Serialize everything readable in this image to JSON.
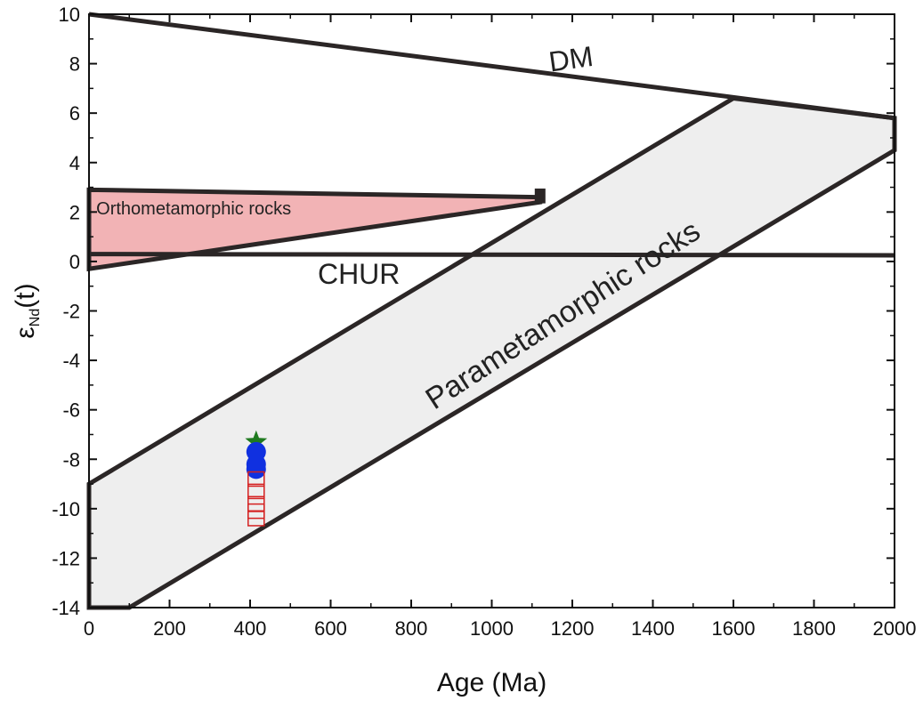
{
  "chart_data": {
    "type": "scatter",
    "xlabel": "Age (Ma)",
    "ylabel_main": "ε",
    "ylabel_sub": "Nd",
    "ylabel_tail": "(t)",
    "xlim": [
      0,
      2000
    ],
    "ylim": [
      -14,
      10
    ],
    "x_ticks": [
      0,
      200,
      400,
      600,
      800,
      1000,
      1200,
      1400,
      1600,
      1800,
      2000
    ],
    "y_ticks": [
      -14,
      -12,
      -10,
      -8,
      -6,
      -4,
      -2,
      0,
      2,
      4,
      6,
      8,
      10
    ],
    "grid": false,
    "lines": [
      {
        "label": "DM",
        "points": [
          [
            0,
            10
          ],
          [
            2000,
            5.8
          ]
        ]
      },
      {
        "label": "CHUR",
        "points": [
          [
            0,
            0.3
          ],
          [
            2000,
            0.25
          ]
        ]
      }
    ],
    "regions": [
      {
        "label": "Parametamorphic rocks",
        "color": "#eeeeee",
        "points": [
          [
            0,
            -9
          ],
          [
            1600,
            6.6
          ],
          [
            2000,
            5.8
          ],
          [
            2000,
            4.5
          ],
          [
            100,
            -14
          ],
          [
            0,
            -14
          ]
        ]
      },
      {
        "label": "Orthometamorphic rocks",
        "color": "#f2b3b5",
        "points": [
          [
            0,
            2.9
          ],
          [
            1120,
            2.6
          ],
          [
            1120,
            2.4
          ],
          [
            0,
            -0.3
          ]
        ]
      }
    ],
    "annotations": [
      {
        "text": "DM",
        "x": 1200,
        "y": 7.8,
        "angle": -8
      },
      {
        "text": "CHUR",
        "x": 670,
        "y": -0.9,
        "angle": 0
      },
      {
        "text": "Orthometamorphic rocks",
        "x": 260,
        "y": 1.9,
        "angle": 0
      },
      {
        "text": "Parametamorphic rocks",
        "x": 1190,
        "y": -2.5,
        "angle": -33
      }
    ],
    "series": [
      {
        "marker": "star",
        "color": "#1f7a1f",
        "points": [
          [
            415,
            -7.3
          ]
        ]
      },
      {
        "marker": "circle",
        "color": "#1030e0",
        "points": [
          [
            415,
            -7.7
          ],
          [
            415,
            -8.2
          ],
          [
            415,
            -8.4
          ]
        ]
      },
      {
        "marker": "open-square",
        "color": "#d42020",
        "points": [
          [
            415,
            -8.8
          ],
          [
            415,
            -9.3
          ],
          [
            415,
            -9.8
          ],
          [
            415,
            -10.1
          ],
          [
            415,
            -10.4
          ]
        ]
      }
    ]
  }
}
